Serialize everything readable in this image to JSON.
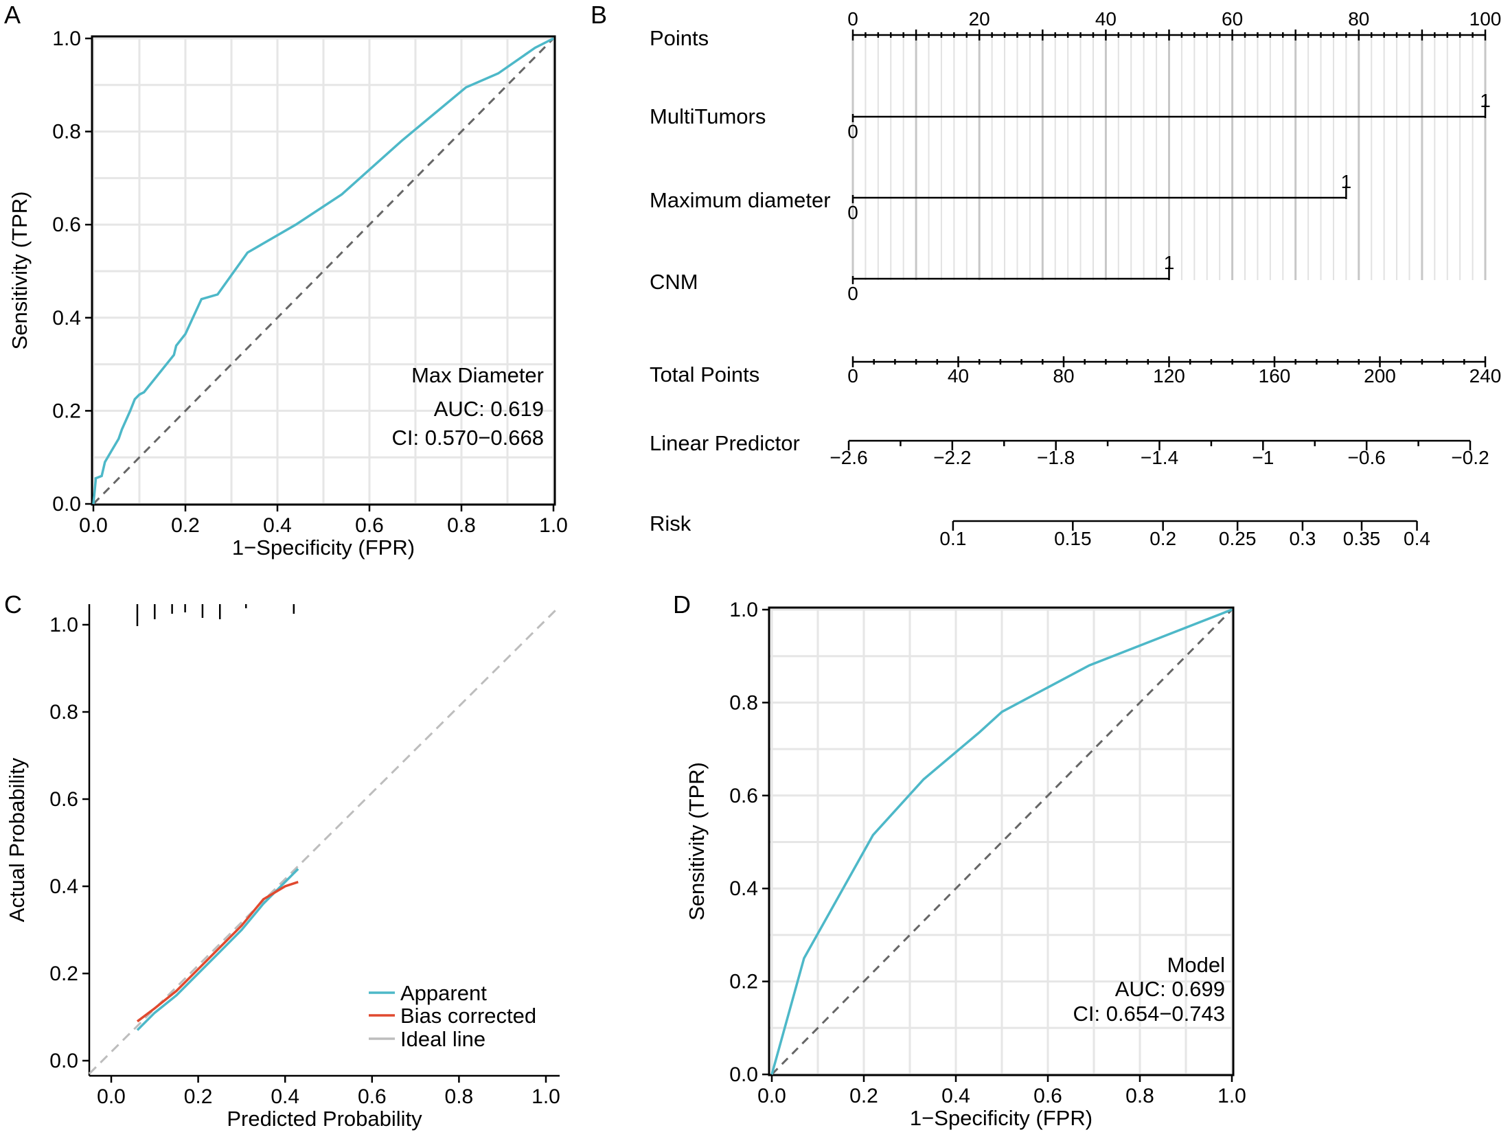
{
  "figure": {
    "panel_labels": [
      "A",
      "B",
      "C",
      "D"
    ]
  },
  "colors": {
    "roc": "#4db8c8",
    "diagonal": "#666666",
    "apparent": "#4db8c8",
    "bias_corrected": "#e0492f",
    "ideal": "#bdbdbd",
    "grid": "#e6e6e6"
  },
  "chart_data": [
    {
      "panel": "A",
      "type": "line",
      "subtype": "roc",
      "xlabel": "1−Specificity (FPR)",
      "ylabel": "Sensitivity (TPR)",
      "xlim": [
        0,
        1
      ],
      "ylim": [
        0,
        1
      ],
      "xticks": [
        "0.0",
        "0.2",
        "0.4",
        "0.6",
        "0.8",
        "1.0"
      ],
      "yticks": [
        "0.0",
        "0.2",
        "0.4",
        "0.6",
        "0.8",
        "1.0"
      ],
      "grid": true,
      "annotation": [
        "Max Diameter",
        "AUC: 0.619",
        "CI: 0.570−0.668"
      ],
      "series": [
        {
          "name": "Max Diameter",
          "x": [
            0,
            0.005,
            0.005,
            0.018,
            0.025,
            0.04,
            0.052,
            0.055,
            0.062,
            0.08,
            0.09,
            0.1,
            0.11,
            0.175,
            0.18,
            0.2,
            0.235,
            0.27,
            0.335,
            0.44,
            0.54,
            0.67,
            0.81,
            0.88,
            0.96,
            1.0
          ],
          "y": [
            0,
            0.05,
            0.055,
            0.06,
            0.09,
            0.115,
            0.135,
            0.14,
            0.16,
            0.2,
            0.225,
            0.235,
            0.24,
            0.32,
            0.34,
            0.365,
            0.44,
            0.45,
            0.54,
            0.6,
            0.665,
            0.78,
            0.895,
            0.925,
            0.98,
            1.0
          ]
        }
      ]
    },
    {
      "panel": "B",
      "type": "nomogram",
      "rows": [
        {
          "label": "Points",
          "ticks": [
            "0",
            "20",
            "40",
            "60",
            "80",
            "100"
          ]
        },
        {
          "label": "MultiTumors",
          "low": "0",
          "high": "1",
          "max_points": 100
        },
        {
          "label": "Maximum diameter",
          "low": "0",
          "high": "1",
          "max_points": 78
        },
        {
          "label": "CNM",
          "low": "0",
          "high": "1",
          "max_points": 50
        },
        {
          "label": "Total Points",
          "ticks": [
            "0",
            "40",
            "80",
            "120",
            "160",
            "200",
            "240"
          ]
        },
        {
          "label": "Linear Predictor",
          "ticks": [
            "−2.6",
            "−2.2",
            "−1.8",
            "−1.4",
            "−1",
            "−0.6",
            "−0.2"
          ]
        },
        {
          "label": "Risk",
          "ticks": [
            "0.1",
            "0.15",
            "0.2",
            "0.25",
            "0.3",
            "0.35",
            "0.4"
          ]
        }
      ]
    },
    {
      "panel": "C",
      "type": "line",
      "subtype": "calibration",
      "xlabel": "Predicted Probability",
      "ylabel": "Actual Probability",
      "xlim": [
        0,
        1
      ],
      "ylim": [
        0,
        1
      ],
      "xticks": [
        "0.0",
        "0.2",
        "0.4",
        "0.6",
        "0.8",
        "1.0"
      ],
      "yticks": [
        "0.0",
        "0.2",
        "0.4",
        "0.6",
        "0.8",
        "1.0"
      ],
      "legend": [
        "Apparent",
        "Bias corrected",
        "Ideal line"
      ],
      "legend_position": "bottom-right",
      "rug_x": [
        0.06,
        0.1,
        0.14,
        0.17,
        0.21,
        0.25,
        0.31,
        0.42
      ],
      "series": [
        {
          "name": "Apparent",
          "x": [
            0.06,
            0.1,
            0.15,
            0.2,
            0.25,
            0.3,
            0.35,
            0.4,
            0.43
          ],
          "y": [
            0.07,
            0.11,
            0.15,
            0.2,
            0.25,
            0.3,
            0.36,
            0.41,
            0.44
          ]
        },
        {
          "name": "Bias corrected",
          "x": [
            0.06,
            0.1,
            0.15,
            0.2,
            0.25,
            0.3,
            0.35,
            0.4,
            0.43
          ],
          "y": [
            0.09,
            0.12,
            0.16,
            0.21,
            0.26,
            0.31,
            0.37,
            0.4,
            0.41
          ]
        },
        {
          "name": "Ideal line",
          "x": [
            -0.05,
            1.05
          ],
          "y": [
            -0.05,
            1.05
          ]
        }
      ]
    },
    {
      "panel": "D",
      "type": "line",
      "subtype": "roc",
      "xlabel": "1−Specificity (FPR)",
      "ylabel": "Sensitivity (TPR)",
      "xlim": [
        0,
        1
      ],
      "ylim": [
        0,
        1
      ],
      "xticks": [
        "0.0",
        "0.2",
        "0.4",
        "0.6",
        "0.8",
        "1.0"
      ],
      "yticks": [
        "0.0",
        "0.2",
        "0.4",
        "0.6",
        "0.8",
        "1.0"
      ],
      "grid": true,
      "annotation": [
        "Model",
        "AUC: 0.699",
        "CI: 0.654−0.743"
      ],
      "series": [
        {
          "name": "Model",
          "x": [
            0,
            0.07,
            0.22,
            0.33,
            0.45,
            0.5,
            0.69,
            1.0
          ],
          "y": [
            0,
            0.25,
            0.515,
            0.635,
            0.735,
            0.78,
            0.88,
            1.0
          ]
        }
      ]
    }
  ]
}
